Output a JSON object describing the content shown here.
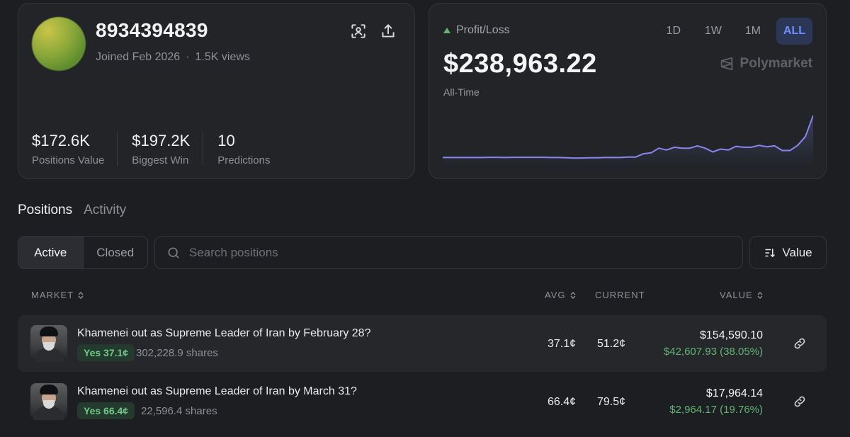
{
  "profile": {
    "username": "8934394839",
    "joined": "Joined Feb 2026",
    "separator": "·",
    "views": "1.5K views",
    "stats": [
      {
        "value": "$172.6K",
        "label": "Positions Value"
      },
      {
        "value": "$197.2K",
        "label": "Biggest Win"
      },
      {
        "value": "10",
        "label": "Predictions"
      }
    ],
    "icons": [
      "scan-icon",
      "share-icon"
    ]
  },
  "pnl": {
    "label": "Profit/Loss",
    "value": "$238,963.22",
    "period": "All-Time",
    "ranges": [
      "1D",
      "1W",
      "1M",
      "ALL"
    ],
    "active_range": "ALL",
    "brand": "Polymarket",
    "accent": "#6f8ff5",
    "up_color": "#5fb574",
    "series": [
      0.1,
      0.1,
      0.1,
      0.1,
      0.1,
      0.1,
      0.105,
      0.105,
      0.1,
      0.105,
      0.105,
      0.105,
      0.105,
      0.105,
      0.1,
      0.1,
      0.095,
      0.09,
      0.09,
      0.095,
      0.095,
      0.1,
      0.1,
      0.1,
      0.11,
      0.11,
      0.18,
      0.2,
      0.3,
      0.26,
      0.32,
      0.3,
      0.3,
      0.35,
      0.3,
      0.22,
      0.28,
      0.26,
      0.34,
      0.32,
      0.32,
      0.36,
      0.33,
      0.35,
      0.25,
      0.25,
      0.36,
      0.55,
      1.0
    ]
  },
  "tabs": [
    {
      "label": "Positions",
      "active": true
    },
    {
      "label": "Activity",
      "active": false
    }
  ],
  "filter": {
    "segments": [
      "Active",
      "Closed"
    ],
    "active": "Active",
    "search_placeholder": "Search positions",
    "sort_label": "Value"
  },
  "table": {
    "headers": {
      "market": "MARKET",
      "avg": "AVG",
      "current": "CURRENT",
      "value": "VALUE"
    },
    "rows": [
      {
        "title": "Khamenei out as Supreme Leader of Iran by February 28?",
        "outcome": "Yes 37.1¢",
        "shares": "302,228.9 shares",
        "avg": "37.1¢",
        "current": "51.2¢",
        "value": "$154,590.10",
        "gain": "$42,607.93 (38.05%)"
      },
      {
        "title": "Khamenei out as Supreme Leader of Iran by March 31?",
        "outcome": "Yes 66.4¢",
        "shares": "22,596.4 shares",
        "avg": "66.4¢",
        "current": "79.5¢",
        "value": "$17,964.14",
        "gain": "$2,964.17 (19.76%)"
      }
    ]
  }
}
